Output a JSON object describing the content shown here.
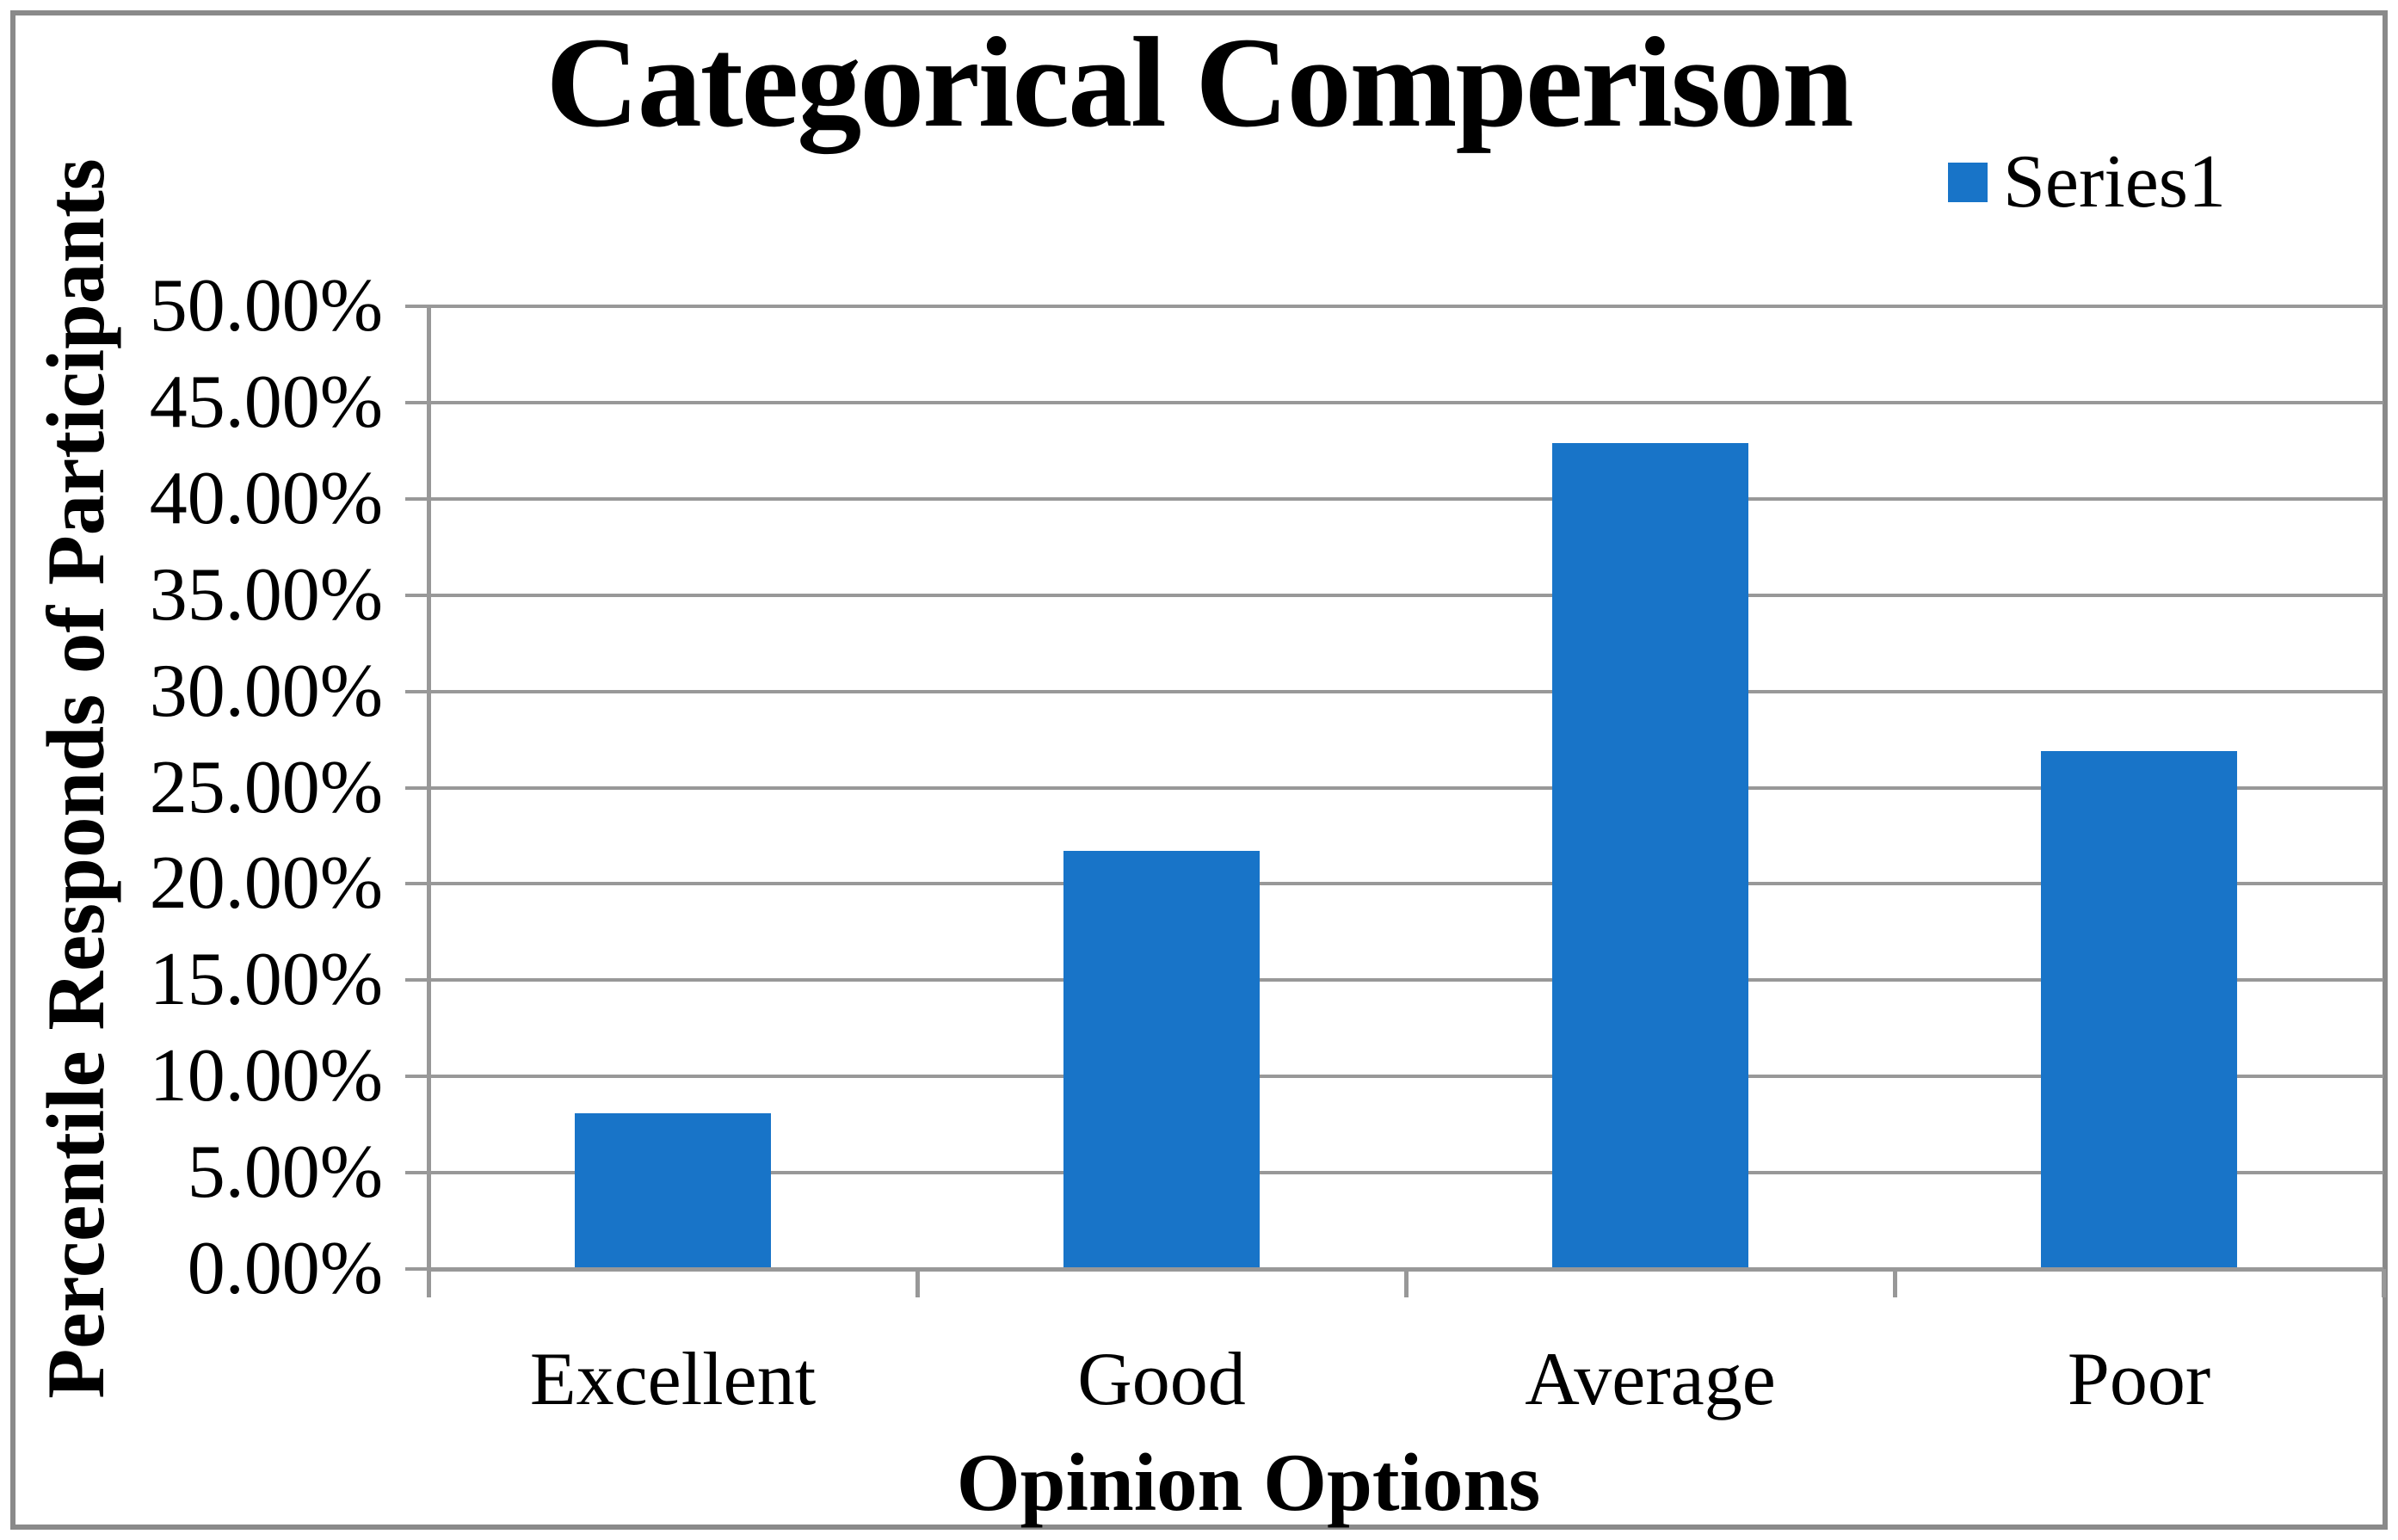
{
  "chart_data": {
    "type": "bar",
    "title": "Categorical Comperison",
    "categories": [
      "Excellent",
      "Good",
      "Average",
      "Poor"
    ],
    "values": [
      8.1,
      21.7,
      42.9,
      26.9
    ],
    "series": [
      {
        "name": "Series1",
        "values": [
          8.1,
          21.7,
          42.9,
          26.9
        ]
      }
    ],
    "xlabel": "Opinion Options",
    "ylabel": "Percentile Responds of Participants",
    "ylim": [
      0,
      50
    ],
    "y_tick_step": 5,
    "y_tick_labels": [
      "0.00%",
      "5.00%",
      "10.00%",
      "15.00%",
      "20.00%",
      "25.00%",
      "30.00%",
      "35.00%",
      "40.00%",
      "45.00%",
      "50.00%"
    ],
    "grid": "horizontal",
    "legend_position": "top-right",
    "bar_color": "#1874C8",
    "line_color": "#989898",
    "frame_color": "#8A8A8A"
  },
  "legend": {
    "label": "Series1",
    "swatch_icon": "legend-swatch-square"
  }
}
